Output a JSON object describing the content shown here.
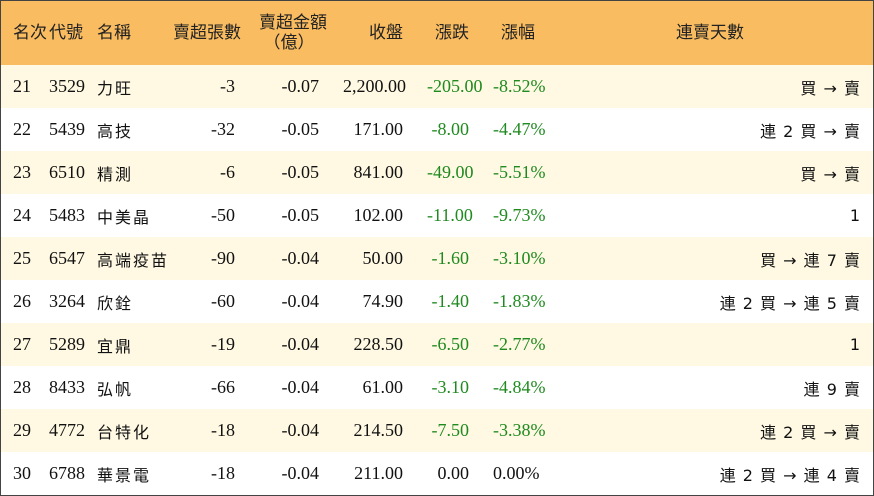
{
  "header": {
    "rank": "名次",
    "code": "代號",
    "name": "名稱",
    "sell_qty": "賣超張數",
    "sell_amt_line1": "賣超金額",
    "sell_amt_line2": "（億）",
    "close": "收盤",
    "change": "漲跌",
    "change_pct": "漲幅",
    "streak": "連賣天數"
  },
  "colors": {
    "header_bg": "#f9bc60",
    "row_odd_bg": "#fff9e3",
    "row_even_bg": "#ffffff",
    "negative": "#1f8a1f"
  },
  "rows": [
    {
      "rank": "21",
      "code": "3529",
      "name": "力旺",
      "sell_qty": "-3",
      "sell_amt": "-0.07",
      "close": "2,200.00",
      "change": "-205.00",
      "change_pct": "-8.52%",
      "streak": "買 → 賣",
      "trend": "down"
    },
    {
      "rank": "22",
      "code": "5439",
      "name": "高技",
      "sell_qty": "-32",
      "sell_amt": "-0.05",
      "close": "171.00",
      "change": "-8.00",
      "change_pct": "-4.47%",
      "streak": "連 2 買 → 賣",
      "trend": "down"
    },
    {
      "rank": "23",
      "code": "6510",
      "name": "精測",
      "sell_qty": "-6",
      "sell_amt": "-0.05",
      "close": "841.00",
      "change": "-49.00",
      "change_pct": "-5.51%",
      "streak": "買 → 賣",
      "trend": "down"
    },
    {
      "rank": "24",
      "code": "5483",
      "name": "中美晶",
      "sell_qty": "-50",
      "sell_amt": "-0.05",
      "close": "102.00",
      "change": "-11.00",
      "change_pct": "-9.73%",
      "streak": "1",
      "trend": "down"
    },
    {
      "rank": "25",
      "code": "6547",
      "name": "高端疫苗",
      "sell_qty": "-90",
      "sell_amt": "-0.04",
      "close": "50.00",
      "change": "-1.60",
      "change_pct": "-3.10%",
      "streak": "買 → 連 7 賣",
      "trend": "down"
    },
    {
      "rank": "26",
      "code": "3264",
      "name": "欣銓",
      "sell_qty": "-60",
      "sell_amt": "-0.04",
      "close": "74.90",
      "change": "-1.40",
      "change_pct": "-1.83%",
      "streak": "連 2 買 → 連 5 賣",
      "trend": "down"
    },
    {
      "rank": "27",
      "code": "5289",
      "name": "宜鼎",
      "sell_qty": "-19",
      "sell_amt": "-0.04",
      "close": "228.50",
      "change": "-6.50",
      "change_pct": "-2.77%",
      "streak": "1",
      "trend": "down"
    },
    {
      "rank": "28",
      "code": "8433",
      "name": "弘帆",
      "sell_qty": "-66",
      "sell_amt": "-0.04",
      "close": "61.00",
      "change": "-3.10",
      "change_pct": "-4.84%",
      "streak": "連 9 賣",
      "trend": "down"
    },
    {
      "rank": "29",
      "code": "4772",
      "name": "台特化",
      "sell_qty": "-18",
      "sell_amt": "-0.04",
      "close": "214.50",
      "change": "-7.50",
      "change_pct": "-3.38%",
      "streak": "連 2 買 → 賣",
      "trend": "down"
    },
    {
      "rank": "30",
      "code": "6788",
      "name": "華景電",
      "sell_qty": "-18",
      "sell_amt": "-0.04",
      "close": "211.00",
      "change": "0.00",
      "change_pct": "0.00%",
      "streak": "連 2 買 → 連 4 賣",
      "trend": "flat"
    }
  ]
}
